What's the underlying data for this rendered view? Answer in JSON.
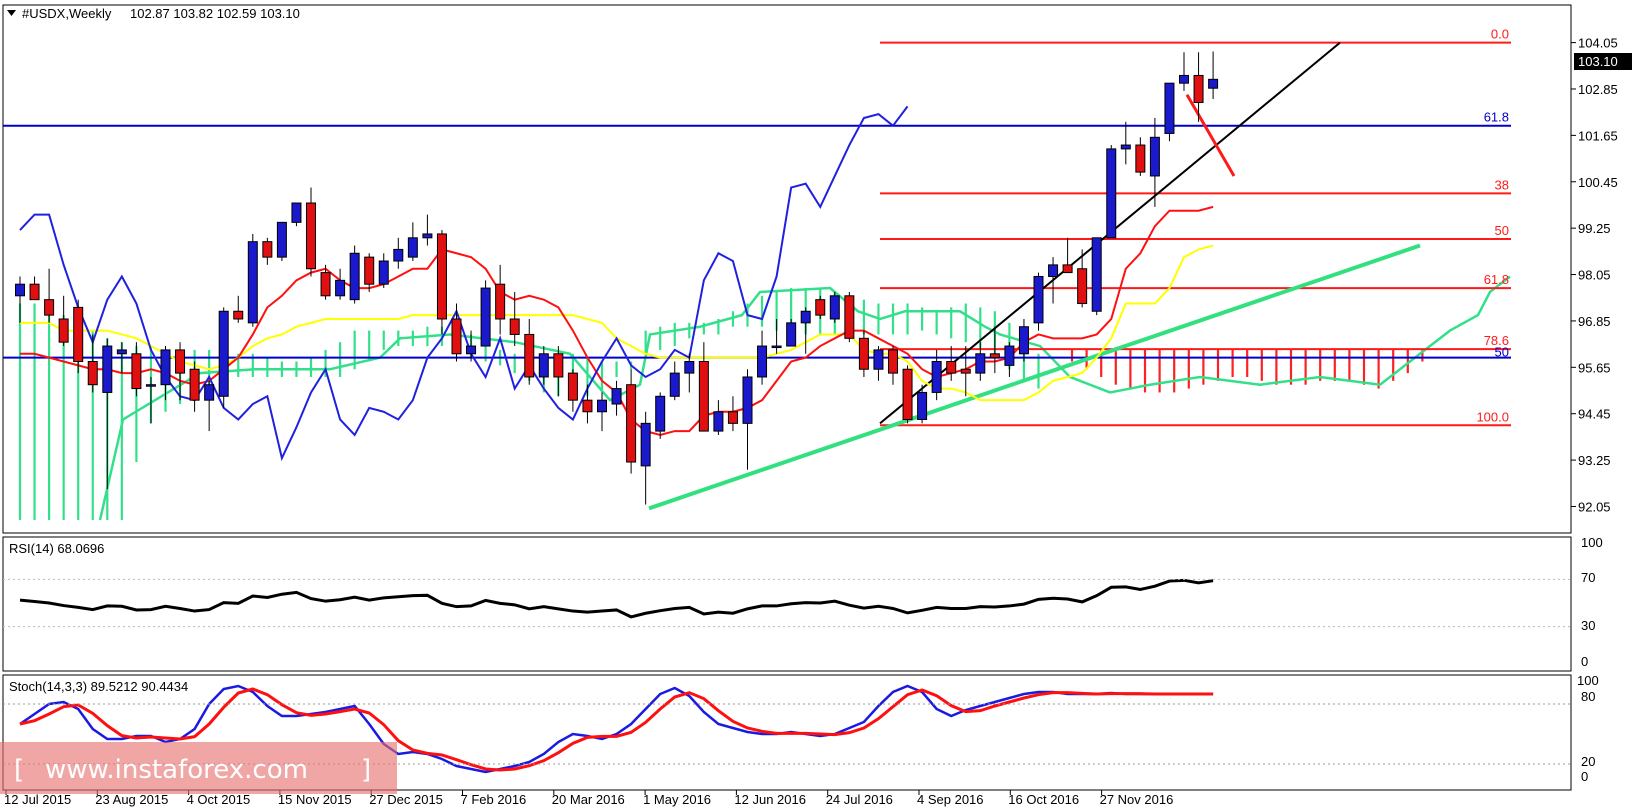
{
  "header": {
    "symbol": "#USDX,Weekly",
    "ohlc": "102.87 103.82 102.59 103.10"
  },
  "rsi_label": "RSI(14) 68.0696",
  "stoch_label": "Stoch(14,3,3) 89.5212 90.4434",
  "watermark": "www.instaforex.com",
  "colors": {
    "bull_body": "#1a1acc",
    "bear_body": "#e01010",
    "cloud": "#33e08a",
    "kumo_bear": "#ff2020",
    "tenkan": "#ff1010",
    "kijun": "#ffff00",
    "chikou": "#2020e0",
    "fib": "#ff1a1a",
    "support_blue": "#0000cc",
    "trend_green": "#33e080"
  },
  "chart_data": {
    "type": "candlestick",
    "timeframe": "Weekly",
    "price_ylim": [
      91.7,
      104.35
    ],
    "y_ticks": [
      "104.05",
      "102.85",
      "101.65",
      "100.45",
      "99.25",
      "98.05",
      "96.85",
      "95.65",
      "94.45",
      "93.25",
      "92.05"
    ],
    "last_price": "103.10",
    "x_labels": [
      "12 Jul 2015",
      "23 Aug 2015",
      "4 Oct 2015",
      "15 Nov 2015",
      "27 Dec 2015",
      "7 Feb 2016",
      "20 Mar 2016",
      "1 May 2016",
      "12 Jun 2016",
      "24 Jul 2016",
      "4 Sep 2016",
      "16 Oct 2016",
      "27 Nov 2016"
    ],
    "candles": [
      [
        97.5,
        98.0,
        96.8,
        97.8
      ],
      [
        97.8,
        98.0,
        97.4,
        97.4
      ],
      [
        97.4,
        98.2,
        96.8,
        97.0
      ],
      [
        96.9,
        97.5,
        96.2,
        96.3
      ],
      [
        97.2,
        97.4,
        95.5,
        95.8
      ],
      [
        95.8,
        96.5,
        95.0,
        95.2
      ],
      [
        95.0,
        96.4,
        92.5,
        96.2
      ],
      [
        96.0,
        96.3,
        95.5,
        96.1
      ],
      [
        96.0,
        96.3,
        94.9,
        95.1
      ],
      [
        95.2,
        95.4,
        94.2,
        95.2
      ],
      [
        95.2,
        96.2,
        94.8,
        96.1
      ],
      [
        96.1,
        96.3,
        94.8,
        95.5
      ],
      [
        95.6,
        95.8,
        94.5,
        94.8
      ],
      [
        94.8,
        95.3,
        94.0,
        95.2
      ],
      [
        94.9,
        97.2,
        94.6,
        97.1
      ],
      [
        97.1,
        97.5,
        96.8,
        96.9
      ],
      [
        96.8,
        99.1,
        96.7,
        98.9
      ],
      [
        98.9,
        99.0,
        98.3,
        98.5
      ],
      [
        98.5,
        99.4,
        98.4,
        99.4
      ],
      [
        99.4,
        99.8,
        99.3,
        99.9
      ],
      [
        99.9,
        100.3,
        98.0,
        98.2
      ],
      [
        98.1,
        98.3,
        97.4,
        97.5
      ],
      [
        97.5,
        98.2,
        97.4,
        97.9
      ],
      [
        97.4,
        98.8,
        97.3,
        98.6
      ],
      [
        98.5,
        98.6,
        97.6,
        97.8
      ],
      [
        97.8,
        98.6,
        97.7,
        98.4
      ],
      [
        98.4,
        99.0,
        98.2,
        98.7
      ],
      [
        98.5,
        99.4,
        98.4,
        99.0
      ],
      [
        99.0,
        99.6,
        98.8,
        99.1
      ],
      [
        99.1,
        99.2,
        96.5,
        96.9
      ],
      [
        96.9,
        97.3,
        95.8,
        96.0
      ],
      [
        96.0,
        96.6,
        95.8,
        96.2
      ],
      [
        96.2,
        97.9,
        96.2,
        97.7
      ],
      [
        97.8,
        98.3,
        96.5,
        96.9
      ],
      [
        96.9,
        97.6,
        96.2,
        96.5
      ],
      [
        96.5,
        96.9,
        95.2,
        95.4
      ],
      [
        95.4,
        96.2,
        95.2,
        96.0
      ],
      [
        96.0,
        96.2,
        94.9,
        95.4
      ],
      [
        95.5,
        95.6,
        94.5,
        94.8
      ],
      [
        94.8,
        95.2,
        94.2,
        94.5
      ],
      [
        94.5,
        95.0,
        94.0,
        94.8
      ],
      [
        94.7,
        95.3,
        94.4,
        95.1
      ],
      [
        95.2,
        95.6,
        92.9,
        93.2
      ],
      [
        93.1,
        94.5,
        92.1,
        94.2
      ],
      [
        94.0,
        95.0,
        93.8,
        94.9
      ],
      [
        94.9,
        95.8,
        94.8,
        95.5
      ],
      [
        95.5,
        96.0,
        95.0,
        95.8
      ],
      [
        95.8,
        96.3,
        94.0,
        94.0
      ],
      [
        94.0,
        94.8,
        93.9,
        94.5
      ],
      [
        94.5,
        94.9,
        94.0,
        94.2
      ],
      [
        94.2,
        95.6,
        93.0,
        95.4
      ],
      [
        95.4,
        96.6,
        95.2,
        96.2
      ],
      [
        96.2,
        96.9,
        96.0,
        96.2
      ],
      [
        96.2,
        96.9,
        96.2,
        96.8
      ],
      [
        96.8,
        97.2,
        96.0,
        97.1
      ],
      [
        97.4,
        97.5,
        96.9,
        97.0
      ],
      [
        96.9,
        97.6,
        96.8,
        97.5
      ],
      [
        97.5,
        97.6,
        96.3,
        96.4
      ],
      [
        96.4,
        96.6,
        95.4,
        95.6
      ],
      [
        95.6,
        96.2,
        95.3,
        96.1
      ],
      [
        96.1,
        96.2,
        95.2,
        95.5
      ],
      [
        95.6,
        95.7,
        94.2,
        94.3
      ],
      [
        94.3,
        95.2,
        94.2,
        95.0
      ],
      [
        95.0,
        96.1,
        94.8,
        95.8
      ],
      [
        95.8,
        96.2,
        95.3,
        95.5
      ],
      [
        95.6,
        96.2,
        94.9,
        95.5
      ],
      [
        95.5,
        96.3,
        95.3,
        96.0
      ],
      [
        96.0,
        96.7,
        95.5,
        95.9
      ],
      [
        95.7,
        96.3,
        95.4,
        96.2
      ],
      [
        96.0,
        96.9,
        95.8,
        96.7
      ],
      [
        96.8,
        98.1,
        96.6,
        98.0
      ],
      [
        98.0,
        98.5,
        97.3,
        98.3
      ],
      [
        98.3,
        99.0,
        98.2,
        98.1
      ],
      [
        98.2,
        98.7,
        97.2,
        97.3
      ],
      [
        97.1,
        99.0,
        97.0,
        99.0
      ],
      [
        99.0,
        101.4,
        99.0,
        101.3
      ],
      [
        101.3,
        102.0,
        100.9,
        101.4
      ],
      [
        101.4,
        101.6,
        100.6,
        100.7
      ],
      [
        100.6,
        102.1,
        99.8,
        101.6
      ],
      [
        101.7,
        103.0,
        101.5,
        103.0
      ],
      [
        103.0,
        103.8,
        102.8,
        103.2
      ],
      [
        103.2,
        103.8,
        102.0,
        102.5
      ],
      [
        102.87,
        103.82,
        102.59,
        103.1
      ]
    ],
    "tenkan": [
      96.0,
      96.0,
      95.9,
      95.8,
      95.7,
      95.6,
      95.6,
      95.5,
      95.5,
      95.6,
      95.5,
      95.3,
      95.2,
      95.3,
      95.6,
      95.9,
      96.5,
      97.2,
      97.5,
      97.9,
      98.1,
      98.2,
      97.9,
      97.7,
      97.7,
      97.8,
      98.0,
      98.2,
      98.2,
      98.7,
      98.6,
      98.5,
      98.2,
      97.6,
      97.4,
      97.5,
      97.4,
      97.2,
      96.6,
      95.9,
      95.3,
      95.0,
      94.3,
      94.0,
      93.9,
      94.0,
      94.0,
      94.4,
      94.5,
      94.5,
      94.6,
      94.8,
      95.3,
      95.8,
      95.9,
      96.2,
      96.4,
      96.6,
      96.6,
      96.4,
      96.2,
      96.0,
      95.6,
      95.4,
      95.5,
      95.6,
      95.8,
      95.8,
      95.9,
      96.3,
      96.5,
      96.4,
      96.4,
      96.4,
      96.5,
      96.9,
      98.2,
      98.6,
      99.3,
      99.7,
      99.7,
      99.7,
      99.8
    ],
    "kijun": [
      96.8,
      96.8,
      96.8,
      96.6,
      96.6,
      96.6,
      96.6,
      96.5,
      96.4,
      96.2,
      96.0,
      95.8,
      95.7,
      95.6,
      95.7,
      95.9,
      96.2,
      96.4,
      96.5,
      96.7,
      96.8,
      96.9,
      96.9,
      96.9,
      96.9,
      96.9,
      96.9,
      97.0,
      97.0,
      97.0,
      97.0,
      97.0,
      97.0,
      97.0,
      97.0,
      97.0,
      97.0,
      97.0,
      97.0,
      96.9,
      96.8,
      96.4,
      96.2,
      96.0,
      95.9,
      95.9,
      95.9,
      95.9,
      95.9,
      95.9,
      95.9,
      95.9,
      96.0,
      96.1,
      96.3,
      96.5,
      96.5,
      96.5,
      96.1,
      96.0,
      96.0,
      95.8,
      95.3,
      95.1,
      95.1,
      95.0,
      94.8,
      94.8,
      94.8,
      94.8,
      95.0,
      95.3,
      95.4,
      95.5,
      95.9,
      96.4,
      97.3,
      97.3,
      97.3,
      97.7,
      98.5,
      98.7,
      98.8
    ],
    "chikou": [
      99.2,
      99.6,
      99.6,
      98.3,
      97.2,
      96.3,
      97.4,
      98.0,
      97.3,
      96.1,
      95.4,
      94.9,
      94.8,
      95.4,
      94.6,
      94.3,
      94.7,
      94.9,
      93.3,
      94.1,
      95.0,
      95.6,
      94.3,
      93.9,
      94.6,
      94.5,
      94.3,
      94.8,
      95.9,
      96.4,
      97.1,
      96.0,
      95.4,
      96.4,
      95.1,
      95.7,
      95.1,
      94.6,
      94.3,
      95.1,
      95.8,
      96.4,
      95.7,
      95.4,
      95.6,
      96.1,
      95.9,
      97.9,
      98.6,
      98.4,
      97.0,
      96.9,
      98.0,
      100.3,
      100.4,
      99.8,
      100.6,
      101.4,
      102.1,
      102.2,
      101.9,
      102.4
    ]
  }
}
